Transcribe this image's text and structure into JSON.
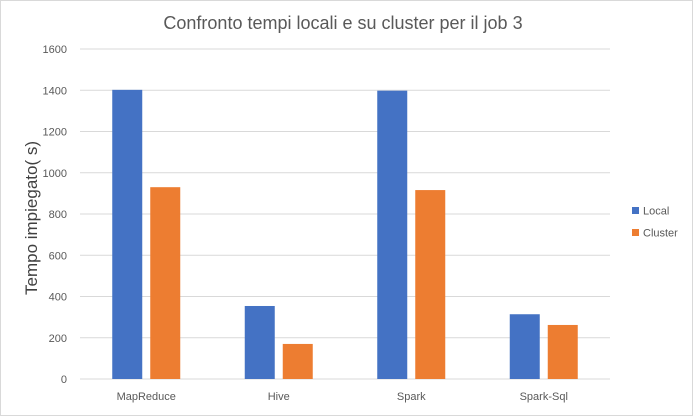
{
  "chart_data": {
    "type": "bar",
    "title": "Confronto tempi locali e su cluster per il job 3",
    "xlabel": "",
    "ylabel": "Tempo impiegato( s)",
    "ylim": [
      0,
      1600
    ],
    "yticks": [
      0,
      200,
      400,
      600,
      800,
      1000,
      1200,
      1400,
      1600
    ],
    "grid": true,
    "legend_position": "right",
    "categories": [
      "MapReduce",
      "Hive",
      "Spark",
      "Spark-Sql"
    ],
    "series": [
      {
        "name": "Local",
        "color": "#4472c4",
        "values": [
          1402,
          354,
          1398,
          314
        ]
      },
      {
        "name": "Cluster",
        "color": "#ed7d31",
        "values": [
          930,
          170,
          916,
          262
        ]
      }
    ]
  }
}
